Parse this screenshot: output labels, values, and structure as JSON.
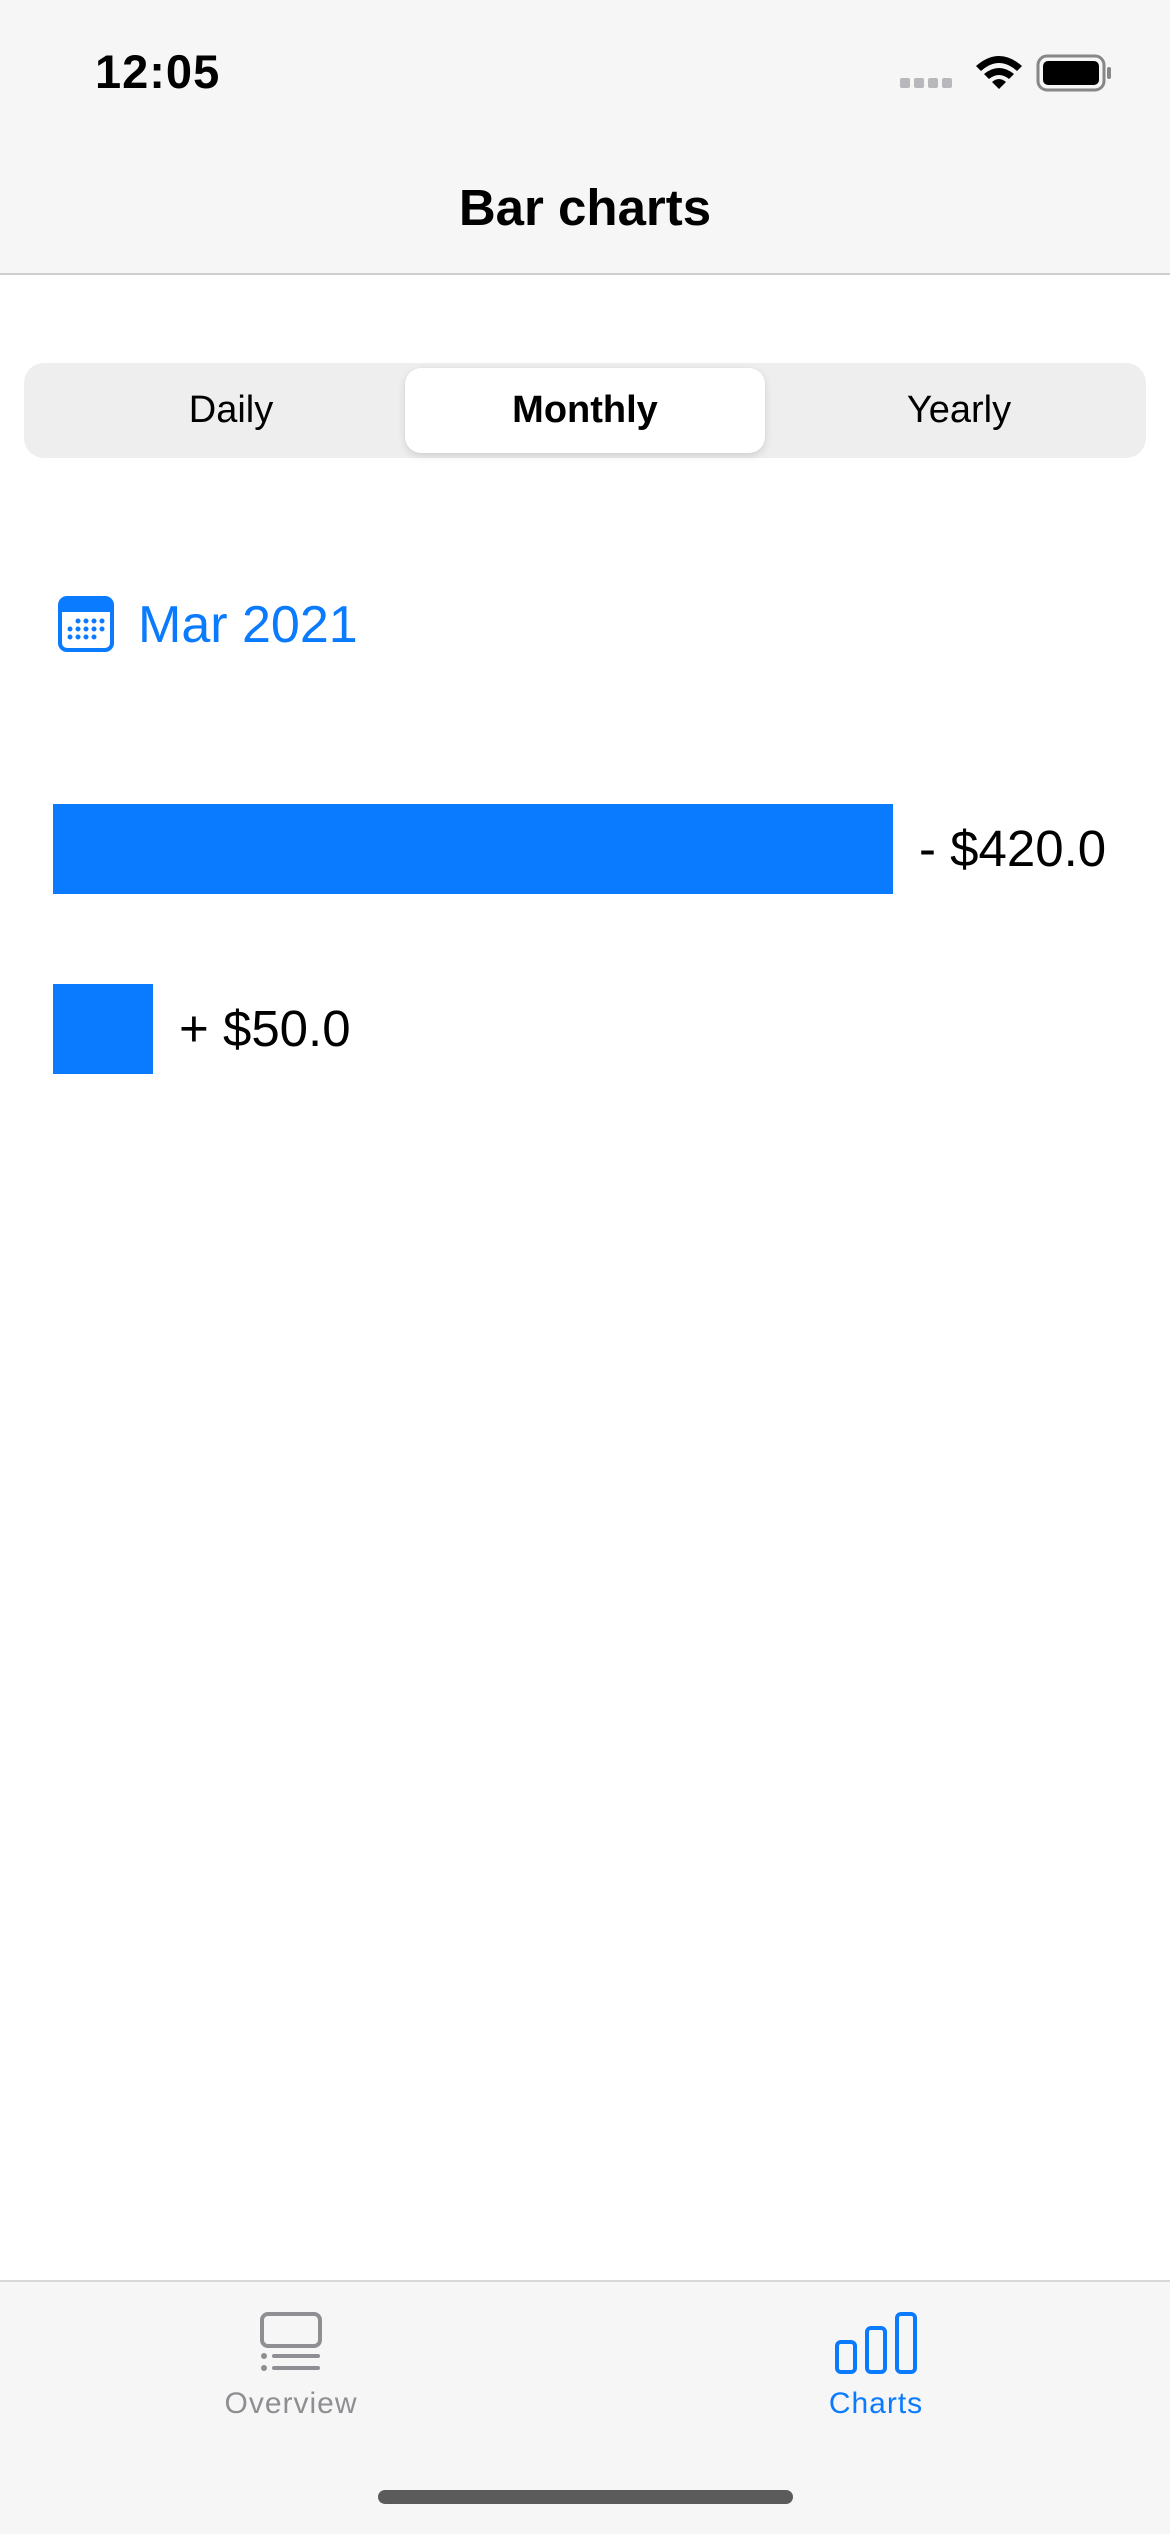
{
  "status_bar": {
    "time": "12:05"
  },
  "nav": {
    "title": "Bar charts"
  },
  "segments": [
    {
      "label": "Daily",
      "selected": false
    },
    {
      "label": "Monthly",
      "selected": true
    },
    {
      "label": "Yearly",
      "selected": false
    }
  ],
  "date_picker": {
    "label": "Mar 2021",
    "icon": "calendar-icon"
  },
  "chart_data": {
    "type": "bar",
    "orientation": "horizontal",
    "values": [
      420.0,
      50.0
    ],
    "value_labels": [
      "- $420.0",
      "+ $50.0"
    ],
    "bar_color": "#0a7aff"
  },
  "tabs": [
    {
      "label": "Overview",
      "icon": "overview-list-icon",
      "active": false
    },
    {
      "label": "Charts",
      "icon": "bar-chart-icon",
      "active": true
    }
  ],
  "colors": {
    "accent": "#0a7aff",
    "inactive": "#8e8e93"
  }
}
